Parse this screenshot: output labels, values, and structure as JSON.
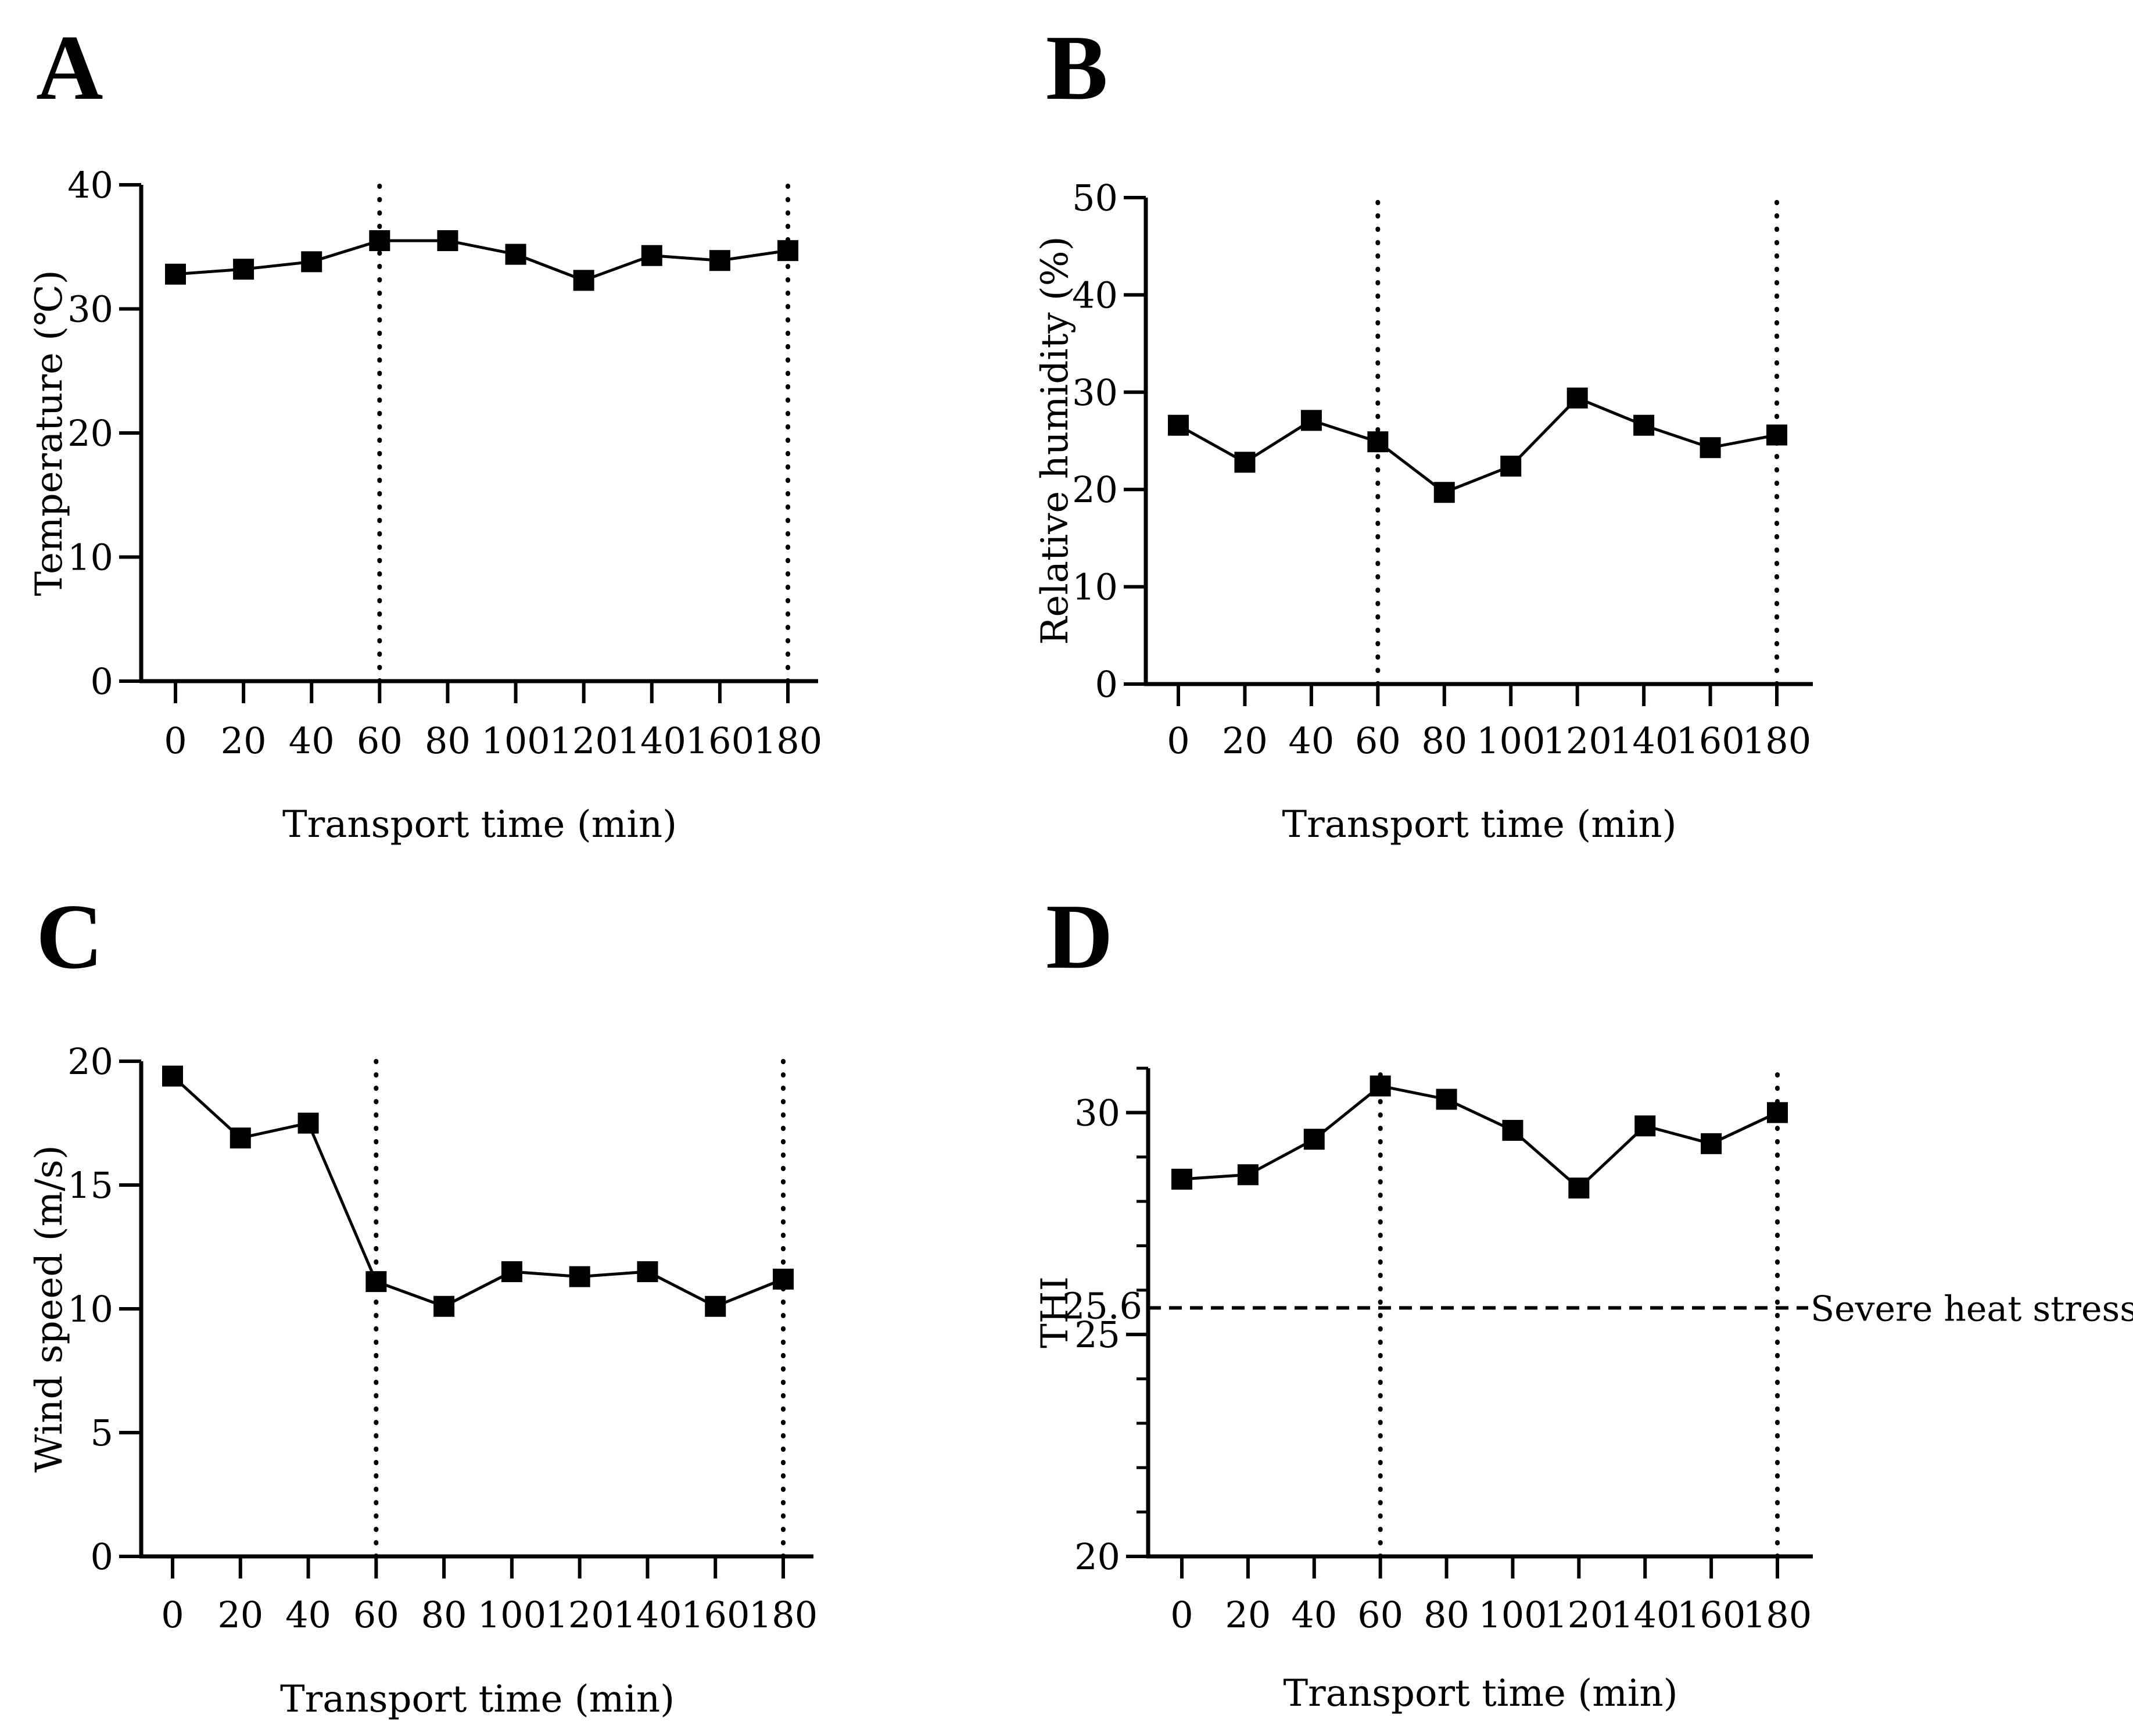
{
  "chart_data": [
    {
      "panel": "A",
      "type": "line",
      "xlabel": "Transport time (min)",
      "ylabel": "Temperature (℃)",
      "x": [
        0,
        20,
        40,
        60,
        80,
        100,
        120,
        140,
        160,
        180
      ],
      "x_tick_labels": [
        "0",
        "20",
        "40",
        "60",
        "80",
        "100",
        "120",
        "140",
        "160",
        "180"
      ],
      "values": [
        32.8,
        33.2,
        33.8,
        35.5,
        35.5,
        34.4,
        32.3,
        34.3,
        33.9,
        34.7
      ],
      "ylim": [
        0,
        40
      ],
      "y_ticks": [
        0,
        10,
        20,
        30,
        40
      ],
      "y_tick_labels": [
        "0",
        "10",
        "20",
        "30",
        "40"
      ],
      "minor_ticks": [],
      "marker": "square",
      "vlines": [
        60,
        180
      ]
    },
    {
      "panel": "B",
      "type": "line",
      "xlabel": "Transport time (min)",
      "ylabel": "Relative humidity (%)",
      "x": [
        0,
        20,
        40,
        60,
        80,
        100,
        120,
        140,
        160,
        180
      ],
      "x_tick_labels": [
        "0",
        "20",
        "40",
        "60",
        "80",
        "100",
        "120",
        "140",
        "160",
        "180"
      ],
      "values": [
        26.6,
        22.8,
        27.1,
        24.9,
        19.7,
        22.4,
        29.4,
        26.6,
        24.3,
        25.6
      ],
      "ylim": [
        0,
        50
      ],
      "y_ticks": [
        0,
        10,
        20,
        30,
        40,
        50
      ],
      "y_tick_labels": [
        "0",
        "10",
        "20",
        "30",
        "40",
        "50"
      ],
      "minor_ticks": [],
      "marker": "square",
      "vlines": [
        60,
        180
      ]
    },
    {
      "panel": "C",
      "type": "line",
      "xlabel": "Transport time (min)",
      "ylabel": "Wind speed (m/s)",
      "x": [
        0,
        20,
        40,
        60,
        80,
        100,
        120,
        140,
        160,
        180
      ],
      "x_tick_labels": [
        "0",
        "20",
        "40",
        "60",
        "80",
        "100",
        "120",
        "140",
        "160",
        "180"
      ],
      "values": [
        19.4,
        16.9,
        17.5,
        11.1,
        10.1,
        11.5,
        11.3,
        11.5,
        10.1,
        11.2
      ],
      "ylim": [
        0,
        20
      ],
      "y_ticks": [
        0,
        5,
        10,
        15,
        20
      ],
      "y_tick_labels": [
        "0",
        "5",
        "10",
        "15",
        "20"
      ],
      "minor_ticks": [],
      "marker": "square",
      "vlines": [
        60,
        180
      ]
    },
    {
      "panel": "D",
      "type": "line",
      "xlabel": "Transport time (min)",
      "ylabel": "THI",
      "x": [
        0,
        20,
        40,
        60,
        80,
        100,
        120,
        140,
        160,
        180
      ],
      "x_tick_labels": [
        "0",
        "20",
        "40",
        "60",
        "80",
        "100",
        "120",
        "140",
        "160",
        "180"
      ],
      "values": [
        28.5,
        28.6,
        29.4,
        30.6,
        30.3,
        29.6,
        28.3,
        29.7,
        29.3,
        30.0
      ],
      "ylim": [
        20,
        31
      ],
      "y_ticks": [
        20,
        25,
        30
      ],
      "y_tick_labels": [
        "20",
        "25",
        "30"
      ],
      "minor_ticks": [
        21,
        22,
        23,
        24,
        26,
        27,
        28,
        29,
        31
      ],
      "marker": "square",
      "vlines": [
        60,
        180
      ],
      "hline": {
        "value": 25.6,
        "label": "25.6",
        "annotation": "Severe heat stress"
      }
    }
  ]
}
